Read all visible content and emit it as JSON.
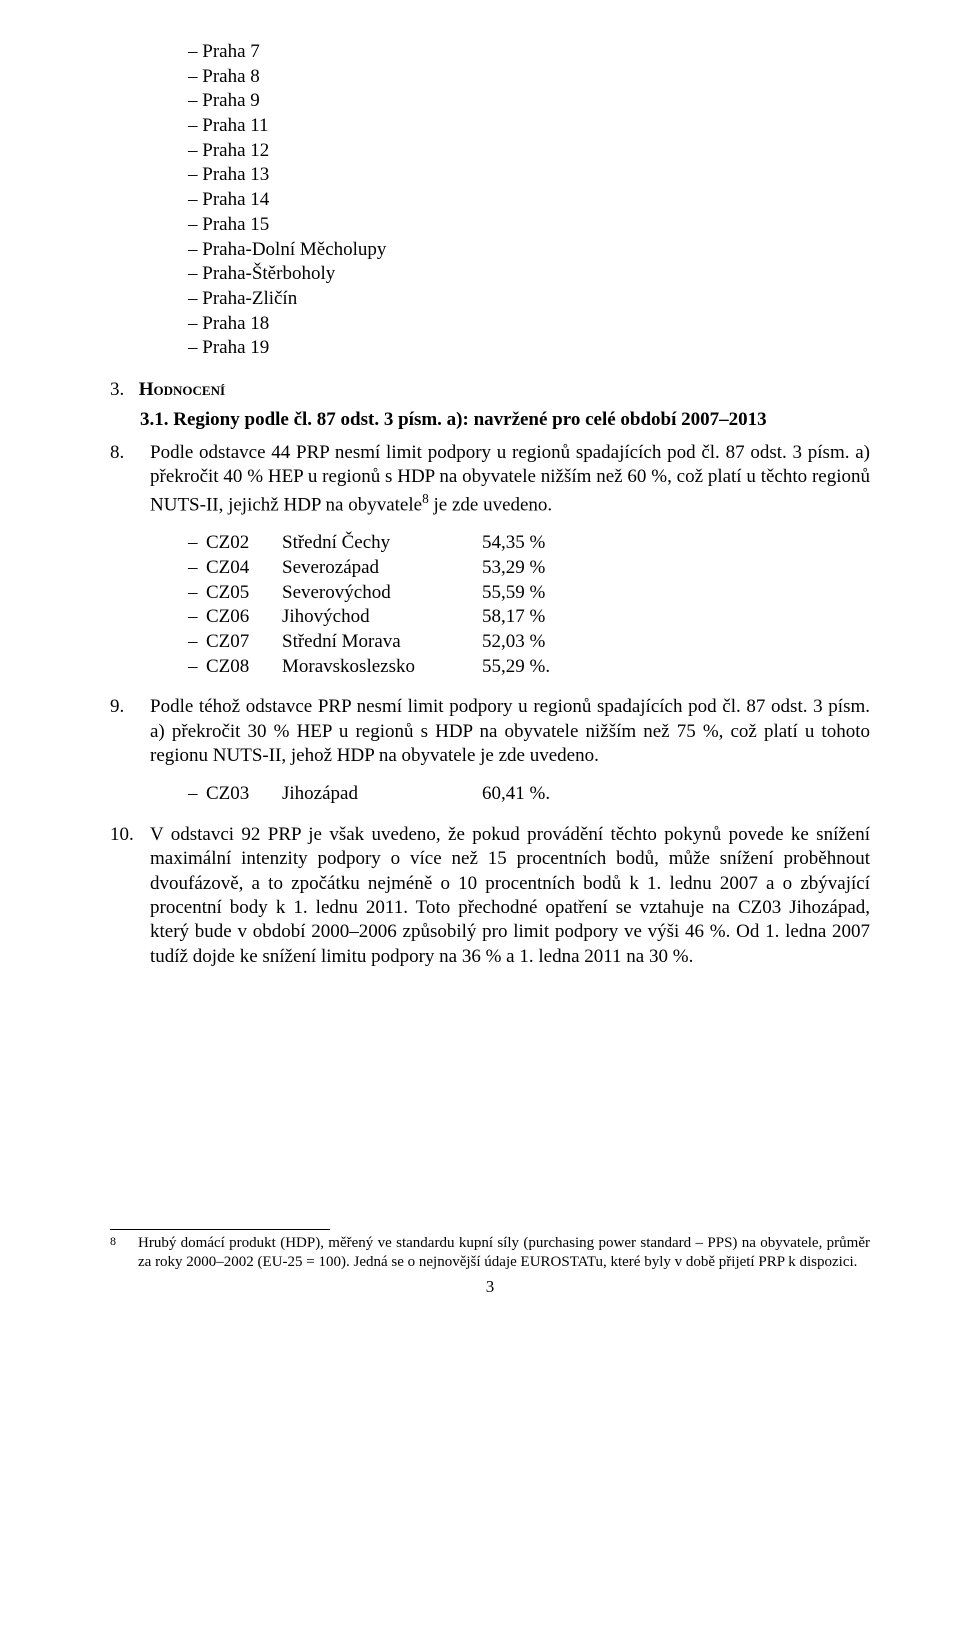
{
  "top_list": [
    "Praha 7",
    "Praha 8",
    "Praha 9",
    "Praha 11",
    "Praha 12",
    "Praha 13",
    "Praha 14",
    "Praha 15",
    "Praha-Dolní Měcholupy",
    "Praha-Štěrboholy",
    "Praha-Zličín",
    "Praha 18",
    "Praha 19"
  ],
  "section3": {
    "num": "3.",
    "label": "Hodnocení"
  },
  "section31": {
    "num": "3.1.",
    "label": "Regiony podle čl. 87 odst. 3 písm. a): navržené pro celé období 2007–2013"
  },
  "para8": {
    "num": "8.",
    "text_a": "Podle odstavce 44 PRP nesmí limit podpory u regionů spadajících pod čl. 87 odst. 3 písm. a) překročit 40 % HEP u regionů s HDP na obyvatele nižším než 60 %, což platí u těchto regionů NUTS-II, jejichž HDP na obyvatele",
    "sup": "8",
    "text_b": " je zde uvedeno."
  },
  "regions8": [
    {
      "code": "CZ02",
      "name": "Střední Čechy",
      "val": "54,35 %"
    },
    {
      "code": "CZ04",
      "name": "Severozápad",
      "val": "53,29 %"
    },
    {
      "code": "CZ05",
      "name": "Severovýchod",
      "val": "55,59 %"
    },
    {
      "code": "CZ06",
      "name": "Jihovýchod",
      "val": "58,17 %"
    },
    {
      "code": "CZ07",
      "name": "Střední Morava",
      "val": "52,03 %"
    },
    {
      "code": "CZ08",
      "name": "Moravskoslezsko",
      "val": "55,29 %."
    }
  ],
  "para9": {
    "num": "9.",
    "text": "Podle téhož odstavce PRP nesmí limit podpory u regionů spadajících pod čl. 87 odst. 3 písm. a) překročit 30 % HEP u regionů s HDP na obyvatele nižším než 75 %, což platí u tohoto regionu NUTS-II, jehož HDP na obyvatele je zde uvedeno."
  },
  "regions9": [
    {
      "code": "CZ03",
      "name": "Jihozápad",
      "val": "60,41 %."
    }
  ],
  "para10": {
    "num": "10.",
    "text": "V odstavci 92 PRP je však uvedeno, že pokud provádění těchto pokynů povede ke snížení maximální intenzity podpory o více než 15 procentních bodů, může snížení proběhnout dvoufázově, a to zpočátku nejméně o 10 procentních bodů k 1. lednu 2007 a o zbývající procentní body k 1. lednu 2011. Toto přechodné opatření se vztahuje na CZ03 Jihozápad, který bude v období 2000–2006 způsobilý pro limit podpory ve výši 46 %. Od 1. ledna 2007 tudíž dojde ke snížení limitu podpory na 36 % a 1. ledna 2011 na 30 %."
  },
  "footnote": {
    "num": "8",
    "text": "Hrubý domácí produkt (HDP), měřený ve standardu kupní síly (purchasing power standard – PPS) na obyvatele, průměr za roky 2000–2002 (EU-25 = 100). Jedná se o nejnovější údaje EUROSTATu, které byly v době přijetí PRP k dispozici."
  },
  "page_number": "3"
}
